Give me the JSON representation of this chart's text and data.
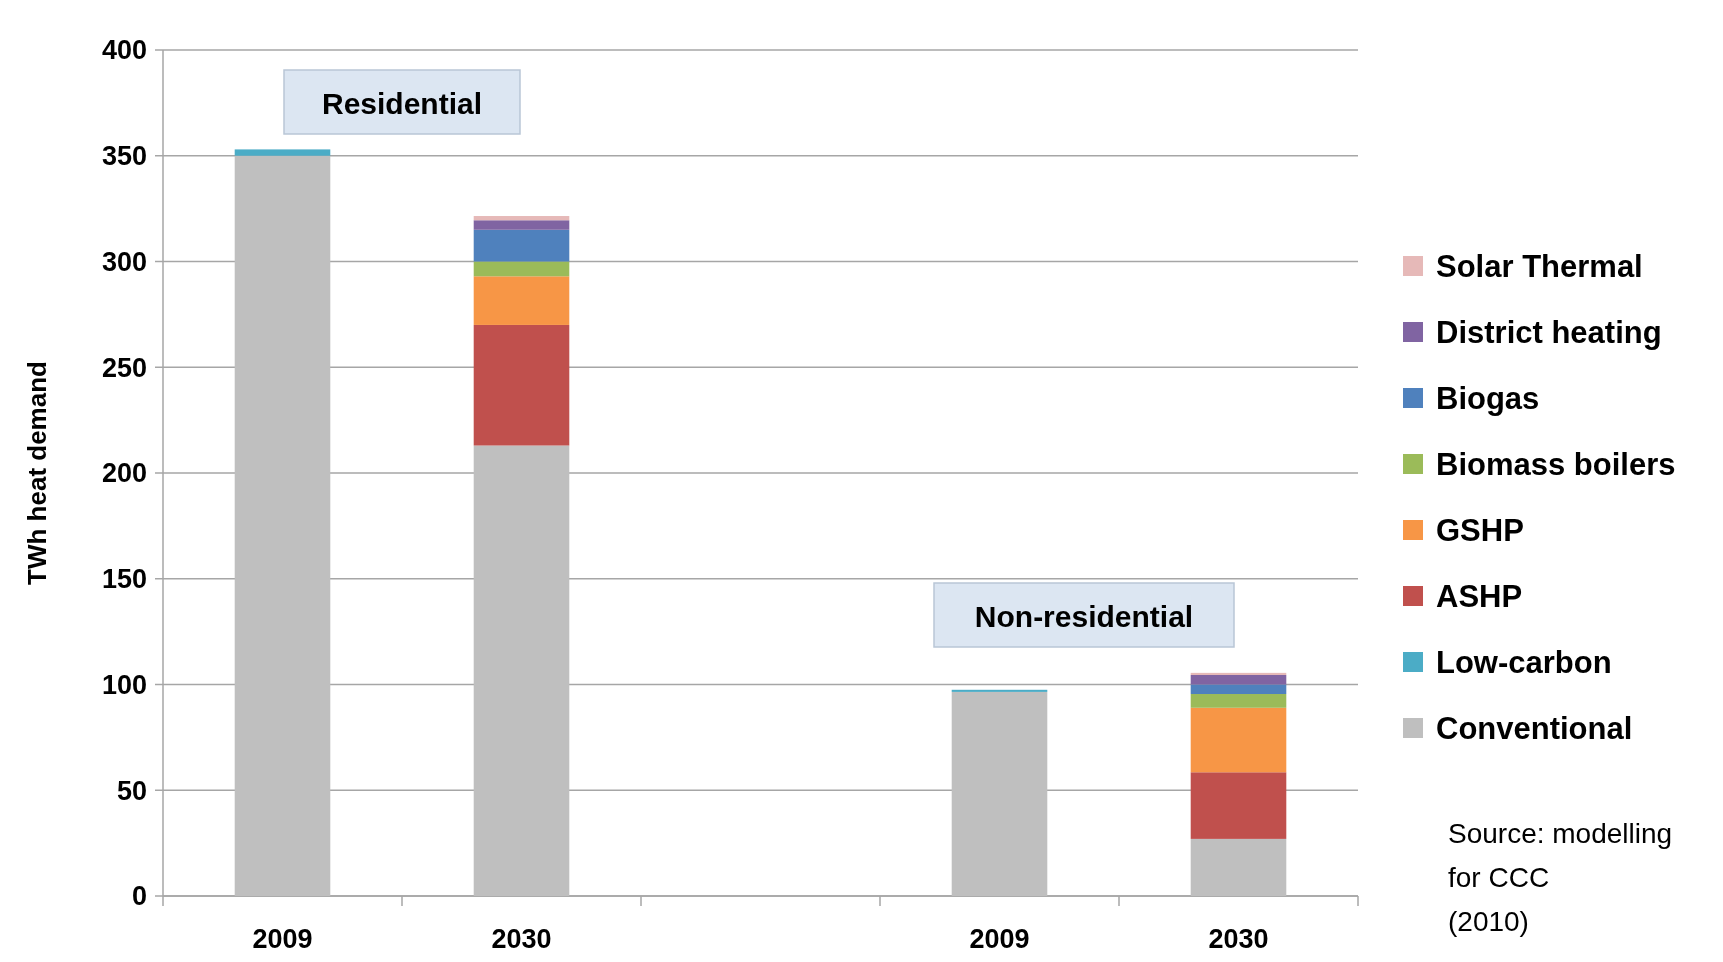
{
  "chart_data": {
    "type": "bar",
    "stacked": true,
    "ylabel": "TWh heat demand",
    "categories": [
      "2009",
      "2030",
      null,
      "2009",
      "2030"
    ],
    "series": [
      {
        "name": "Conventional",
        "color": "#bfbfbf",
        "values": [
          350,
          213,
          null,
          96.5,
          27
        ]
      },
      {
        "name": "Low-carbon",
        "color": "#4bacc6",
        "values": [
          3,
          null,
          null,
          1,
          null
        ]
      },
      {
        "name": "ASHP",
        "color": "#c0504d",
        "values": [
          null,
          57,
          null,
          null,
          31.5
        ]
      },
      {
        "name": "GSHP",
        "color": "#f79646",
        "values": [
          null,
          23,
          null,
          null,
          30.5
        ]
      },
      {
        "name": "Biomass boilers",
        "color": "#9bbb59",
        "values": [
          null,
          7,
          null,
          null,
          6.5
        ]
      },
      {
        "name": "Biogas",
        "color": "#4f81bd",
        "values": [
          null,
          15,
          null,
          null,
          4.5
        ]
      },
      {
        "name": "District heating",
        "color": "#8064a2",
        "values": [
          null,
          4.5,
          null,
          null,
          4.5
        ]
      },
      {
        "name": "Solar Thermal",
        "color": "#e6b9b8",
        "values": [
          null,
          2,
          null,
          null,
          1
        ]
      }
    ],
    "ylim": [
      0,
      400
    ],
    "yticks": [
      0,
      50,
      100,
      150,
      200,
      250,
      300,
      350,
      400
    ],
    "grid": "y",
    "legend": "right",
    "annotations": [
      "Residential",
      "Non-residential",
      "Source: modelling for CCC (2010)"
    ]
  }
}
